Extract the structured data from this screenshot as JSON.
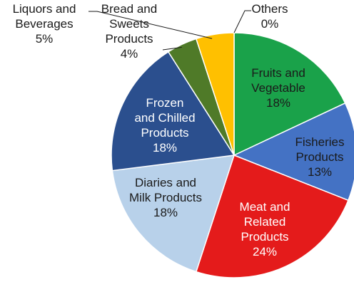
{
  "chart_data": {
    "type": "pie",
    "categories": [
      "Fruits and Vegetable",
      "Fisheries Products",
      "Meat and Related Products",
      "Diaries and Milk Products",
      "Frozen and Chilled Products",
      "Bread and Sweets Products",
      "Liquors and Beverages",
      "Others"
    ],
    "values": [
      18,
      13,
      24,
      18,
      18,
      4,
      5,
      0
    ],
    "colors": [
      "#1aa24a",
      "#4472c4",
      "#e41b1b",
      "#b8d1ea",
      "#2b4f8e",
      "#4f7a28",
      "#ffc000",
      "#ffffff"
    ],
    "labels": [
      {
        "lines": [
          "Fruits and",
          "Vegetable",
          "18%"
        ],
        "color": "#1a1a1a"
      },
      {
        "lines": [
          "Fisheries",
          "Products",
          "13%"
        ],
        "color": "#1a1a1a"
      },
      {
        "lines": [
          "Meat and",
          "Related",
          "Products",
          "24%"
        ],
        "color": "#ffffff"
      },
      {
        "lines": [
          "Diaries and",
          "Milk Products",
          "18%"
        ],
        "color": "#1a1a1a"
      },
      {
        "lines": [
          "Frozen",
          "and Chilled",
          "Products",
          "18%"
        ],
        "color": "#ffffff"
      },
      {
        "lines": [
          "Bread and",
          "Sweets",
          "Products",
          "4%"
        ],
        "color": "#1a1a1a"
      },
      {
        "lines": [
          "Liquors and",
          "Beverages",
          "5%"
        ],
        "color": "#1a1a1a"
      },
      {
        "lines": [
          "Others",
          "0%"
        ],
        "color": "#1a1a1a"
      }
    ]
  }
}
